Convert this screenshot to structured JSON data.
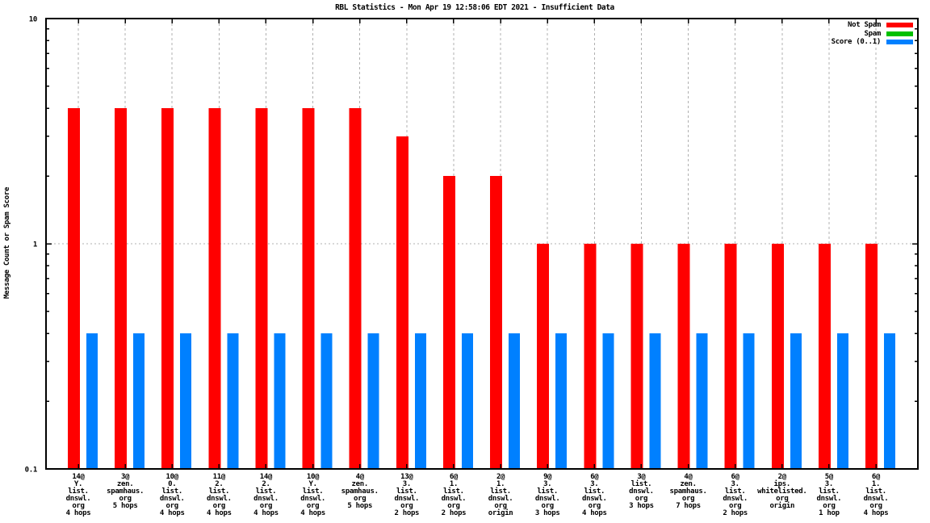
{
  "chart_data": {
    "type": "bar",
    "title": "RBL Statistics - Mon Apr 19 12:58:06 EDT 2021 - Insufficient Data",
    "ylabel": "Message Count or Spam Score",
    "y_scale": "log",
    "ylim": [
      0.1,
      10
    ],
    "ytics": [
      {
        "label": "10",
        "value": 10
      },
      {
        "label": "1",
        "value": 1
      },
      {
        "label": "0.1",
        "value": 0.1
      }
    ],
    "grid": {
      "vertical_at_xtics": true,
      "horizontal_at": 1
    },
    "legend_position": "top-right",
    "categories": [
      [
        "14@",
        "Y.",
        "list.",
        "dnswl.",
        "org",
        "4 hops"
      ],
      [
        "3@",
        "zen.",
        "spamhaus.",
        "org",
        "5 hops"
      ],
      [
        "10@",
        "0.",
        "list.",
        "dnswl.",
        "org",
        "4 hops"
      ],
      [
        "11@",
        "2.",
        "list.",
        "dnswl.",
        "org",
        "4 hops"
      ],
      [
        "14@",
        "2.",
        "list.",
        "dnswl.",
        "org",
        "4 hops"
      ],
      [
        "10@",
        "Y.",
        "list.",
        "dnswl.",
        "org",
        "4 hops"
      ],
      [
        "4@",
        "zen.",
        "spamhaus.",
        "org",
        "5 hops"
      ],
      [
        "13@",
        "3.",
        "list.",
        "dnswl.",
        "org",
        "2 hops"
      ],
      [
        "6@",
        "1.",
        "list.",
        "dnswl.",
        "org",
        "2 hops"
      ],
      [
        "2@",
        "1.",
        "list.",
        "dnswl.",
        "org",
        "origin"
      ],
      [
        "9@",
        "3.",
        "list.",
        "dnswl.",
        "org",
        "3 hops"
      ],
      [
        "6@",
        "3.",
        "list.",
        "dnswl.",
        "org",
        "4 hops"
      ],
      [
        "3@",
        "list.",
        "dnswl.",
        "org",
        "3 hops"
      ],
      [
        "4@",
        "zen.",
        "spamhaus.",
        "org",
        "7 hops"
      ],
      [
        "6@",
        "3.",
        "list.",
        "dnswl.",
        "org",
        "2 hops"
      ],
      [
        "2@",
        "ips.",
        "whitelisted.",
        "org",
        "origin"
      ],
      [
        "5@",
        "3.",
        "list.",
        "dnswl.",
        "org",
        "1 hop"
      ],
      [
        "6@",
        "1.",
        "list.",
        "dnswl.",
        "org",
        "4 hops"
      ]
    ],
    "series": [
      {
        "name": "Not Spam",
        "color": "#ff0000",
        "values": [
          4,
          4,
          4,
          4,
          4,
          4,
          4,
          3,
          2,
          2,
          1,
          1,
          1,
          1,
          1,
          1,
          1,
          1
        ]
      },
      {
        "name": "Spam",
        "color": "#00c000",
        "values": [
          0,
          0,
          0,
          0,
          0,
          0,
          0,
          0,
          0,
          0,
          0,
          0,
          0,
          0,
          0,
          0,
          0,
          0
        ]
      },
      {
        "name": "Score (0..1)",
        "color": "#0080ff",
        "values": [
          0.4,
          0.4,
          0.4,
          0.4,
          0.4,
          0.4,
          0.4,
          0.4,
          0.4,
          0.4,
          0.4,
          0.4,
          0.4,
          0.4,
          0.4,
          0.4,
          0.4,
          0.4
        ]
      }
    ]
  }
}
